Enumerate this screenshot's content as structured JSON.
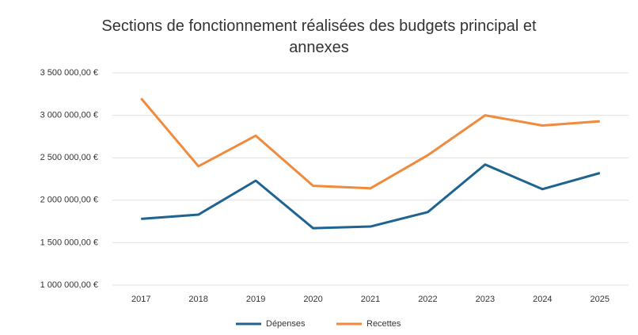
{
  "chart_data": {
    "type": "line",
    "title": "Sections de fonctionnement réalisées des budgets principal et annexes",
    "categories": [
      "2017",
      "2018",
      "2019",
      "2020",
      "2021",
      "2022",
      "2023",
      "2024",
      "2025"
    ],
    "series": [
      {
        "name": "Dépenses",
        "color": "#1f6391",
        "values": [
          1780000,
          1830000,
          2230000,
          1670000,
          1690000,
          1860000,
          2420000,
          2130000,
          2320000
        ]
      },
      {
        "name": "Recettes",
        "color": "#f08a3c",
        "values": [
          3200000,
          2400000,
          2760000,
          2170000,
          2140000,
          2530000,
          3000000,
          2880000,
          2930000
        ]
      }
    ],
    "ylim": [
      1000000,
      3500000
    ],
    "yticks": [
      {
        "value": 1000000,
        "label": "1 000 000,00 €"
      },
      {
        "value": 1500000,
        "label": "1 500 000,00 €"
      },
      {
        "value": 2000000,
        "label": "2 000 000,00 €"
      },
      {
        "value": 2500000,
        "label": "2 500 000,00 €"
      },
      {
        "value": 3000000,
        "label": "3 000 000,00 €"
      },
      {
        "value": 3500000,
        "label": "3 500 000,00 €"
      }
    ],
    "grid": true,
    "legend": "bottom"
  }
}
